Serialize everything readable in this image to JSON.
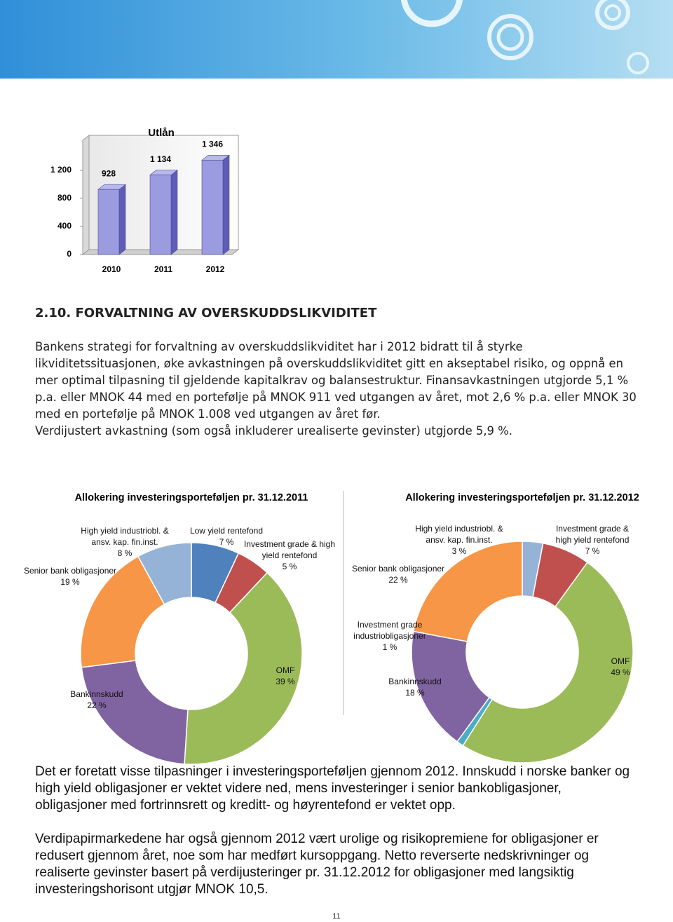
{
  "chart_data": [
    {
      "type": "bar",
      "title": "Utlån",
      "categories": [
        "2010",
        "2011",
        "2012"
      ],
      "values": [
        928,
        1134,
        1346
      ],
      "value_labels": [
        "928",
        "1 134",
        "1 346"
      ],
      "color": "#9b9be0",
      "ylim": [
        0,
        1600
      ],
      "yticks": [
        0,
        400,
        800,
        {
          "value": 1200,
          "label": "1 200"
        }
      ],
      "grid": false
    },
    {
      "type": "donut",
      "title": "Allokering investeringsporteføljen pr. 31.12.2011",
      "categories": [
        "Low yield rentefond",
        "Investment grade & high yield rentefond",
        "OMF",
        "Bankinnskudd",
        "Senior bank obligasjoner",
        "High yield industriobl. & ansv. kap. fin.inst."
      ],
      "values": [
        7,
        5,
        39,
        22,
        19,
        8
      ],
      "value_labels": [
        "7 %",
        "5 %",
        "39 %",
        "22 %",
        "19 %",
        "8 %"
      ],
      "colors": [
        "#4f81bd",
        "#c0504d",
        "#9bbb59",
        "#8064a2",
        "#f79646",
        "#95b3d7"
      ]
    },
    {
      "type": "donut",
      "title": "Allokering investeringsporteføljen pr. 31.12.2012",
      "categories": [
        "High yield industriobl. & ansv. kap. fin.inst.",
        "Investment grade & high yield rentefond",
        "OMF",
        "Investment grade industriobligasjoner",
        "Bankinnskudd",
        "Senior bank obligasjoner"
      ],
      "values": [
        3,
        7,
        49,
        1,
        18,
        22
      ],
      "value_labels": [
        "3 %",
        "7 %",
        "49 %",
        "1 %",
        "18 %",
        "22 %"
      ],
      "colors": [
        "#95b3d7",
        "#c0504d",
        "#9bbb59",
        "#4bacc6",
        "#8064a2",
        "#f79646"
      ]
    }
  ],
  "section": {
    "heading": "2.10. FORVALTNING AV OVERSKUDDSLIKVIDITET",
    "paragraphs": [
      "Bankens strategi for forvaltning av overskuddslikviditet har i 2012 bidratt til å styrke likviditetssituasjonen, øke avkastningen på overskuddslikviditet gitt en akseptabel risiko, og oppnå en mer optimal tilpasning til gjeldende kapitalkrav og balansestruktur. Finansavkastningen utgjorde 5,1 % p.a. eller MNOK 44 med en portefølje på MNOK 911 ved utgangen av året, mot 2,6 % p.a. eller MNOK 30 med en portefølje på MNOK 1.008 ved utgangen av året før.",
      "Verdijustert avkastning (som også inkluderer urealiserte gevinster) utgjorde 5,9 %."
    ]
  },
  "body": [
    "Det er foretatt visse tilpasninger i investeringsporteføljen gjennom 2012. Innskudd i norske banker og high yield obligasjoner er vektet videre ned, mens investeringer i senior bankobligasjoner, obligasjoner med fortrinnsrett og kreditt- og høyrentefond er vektet opp.",
    "Verdipapirmarkedene har også gjennom 2012 vært urolige og risikopremiene for obligasjoner er redusert gjennom året, noe som har medført kursoppgang. Netto reverserte nedskrivninger og realiserte gevinster basert på verdijusteringer pr. 31.12.2012 for obligasjoner med langsiktig investeringshorisont utgjør MNOK 10,5."
  ],
  "page_number": "11"
}
